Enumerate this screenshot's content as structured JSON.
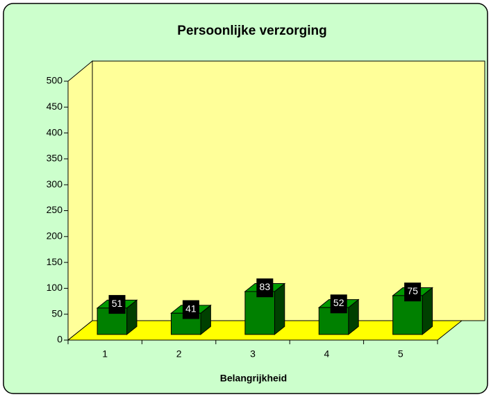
{
  "chart_data": {
    "type": "bar",
    "title": "Persoonlijke verzorging",
    "x_label": "Belangrijkheid",
    "categories": [
      "1",
      "2",
      "3",
      "4",
      "5"
    ],
    "values": [
      51,
      41,
      83,
      52,
      75
    ],
    "color": "#008000",
    "ylim": [
      0,
      500
    ],
    "yticks": [
      0,
      50,
      100,
      150,
      200,
      250,
      300,
      350,
      400,
      450,
      500
    ],
    "grid": false,
    "data_labels": true
  }
}
